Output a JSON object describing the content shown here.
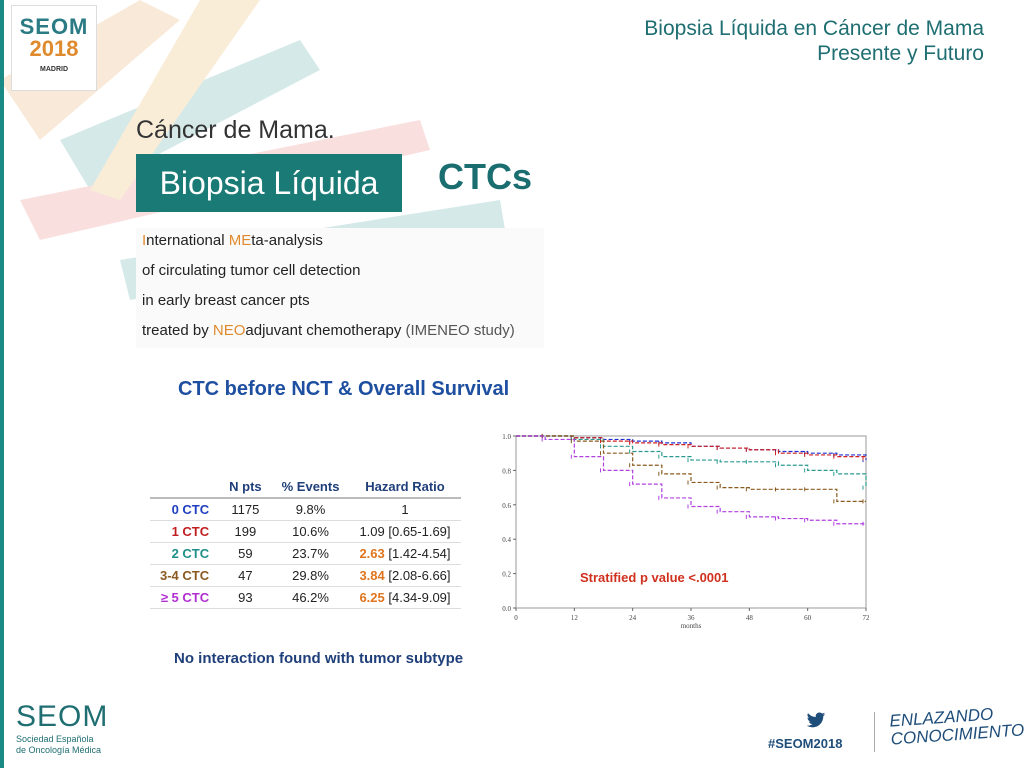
{
  "header": {
    "line1": "Biopsia Líquida en Cáncer de Mama",
    "line2": "Presente y Futuro"
  },
  "logo": {
    "line1": "SEOM",
    "line2": "2018",
    "line3": "MADRID"
  },
  "slide": {
    "subtitle": "Cáncer de Mama.",
    "box_label": "Biopsia Líquida",
    "ctcs": "CTCs"
  },
  "imeneo": {
    "l1a": "I",
    "l1b": "nternational ",
    "l1c": "ME",
    "l1d": "ta-analysis",
    "l2": "of circulating tumor cell detection",
    "l3": "in early breast cancer pts",
    "l4a": "treated by ",
    "l4b": "NEO",
    "l4c": "adjuvant chemotherapy",
    "l4d": " (IMENEO study)"
  },
  "panel": {
    "title": "CTC before NCT & Overall Survival",
    "table_headers": [
      "",
      "N pts",
      "% Events",
      "Hazard Ratio"
    ],
    "rows": [
      {
        "label": "0 CTC",
        "color": "#1f3fc0",
        "npts": "1175",
        "events": "9.8%",
        "hr_main": "1",
        "hr_ci": ""
      },
      {
        "label": "1 CTC",
        "color": "#c01f1f",
        "npts": "199",
        "events": "10.6%",
        "hr_main": "1.09",
        "hr_ci": " [0.65-1.69]"
      },
      {
        "label": "2 CTC",
        "color": "#1f8f8a",
        "npts": "59",
        "events": "23.7%",
        "hr_main": "2.63",
        "hr_ci": " [1.42-4.54]"
      },
      {
        "label": "3-4 CTC",
        "color": "#8a5a1f",
        "npts": "47",
        "events": "29.8%",
        "hr_main": "3.84",
        "hr_ci": " [2.08-6.66]"
      },
      {
        "label": "≥ 5 CTC",
        "color": "#b02fd0",
        "npts": "93",
        "events": "46.2%",
        "hr_main": "6.25",
        "hr_ci": " [4.34-9.09]"
      }
    ],
    "footnote": "No interaction found with tumor subtype",
    "pvalue": "Stratified p value <.0001"
  },
  "chart_data": {
    "type": "line",
    "xlabel": "months",
    "x_ticks": [
      0,
      12,
      24,
      36,
      48,
      60,
      72
    ],
    "y_ticks": [
      "0.0",
      "0.2",
      "0.4",
      "0.6",
      "0.8",
      "1.0"
    ],
    "xlim": [
      0,
      72
    ],
    "ylim": [
      0,
      1
    ],
    "series": [
      {
        "name": "0 CTC",
        "color": "#2030d0",
        "x": [
          0,
          6,
          12,
          18,
          24,
          30,
          36,
          42,
          48,
          54,
          60,
          66,
          72
        ],
        "y": [
          1.0,
          1.0,
          0.99,
          0.98,
          0.97,
          0.96,
          0.94,
          0.93,
          0.92,
          0.91,
          0.9,
          0.89,
          0.86
        ]
      },
      {
        "name": "1 CTC",
        "color": "#d02020",
        "x": [
          0,
          6,
          12,
          18,
          24,
          30,
          36,
          42,
          48,
          54,
          60,
          66,
          72
        ],
        "y": [
          1.0,
          1.0,
          0.99,
          0.97,
          0.96,
          0.95,
          0.94,
          0.93,
          0.92,
          0.9,
          0.89,
          0.88,
          0.87
        ]
      },
      {
        "name": "2 CTC",
        "color": "#2a9a90",
        "x": [
          0,
          6,
          12,
          18,
          24,
          30,
          36,
          42,
          48,
          54,
          60,
          66,
          72
        ],
        "y": [
          1.0,
          1.0,
          0.98,
          0.94,
          0.91,
          0.88,
          0.86,
          0.85,
          0.85,
          0.83,
          0.8,
          0.78,
          0.7
        ]
      },
      {
        "name": "3-4 CTC",
        "color": "#8a5a1f",
        "x": [
          0,
          6,
          12,
          18,
          24,
          30,
          36,
          42,
          48,
          54,
          60,
          66,
          72
        ],
        "y": [
          1.0,
          1.0,
          0.97,
          0.9,
          0.83,
          0.78,
          0.73,
          0.7,
          0.69,
          0.69,
          0.69,
          0.62,
          0.62
        ]
      },
      {
        "name": "≥ 5 CTC",
        "color": "#b040e0",
        "x": [
          0,
          6,
          12,
          18,
          24,
          30,
          36,
          42,
          48,
          54,
          60,
          66,
          72
        ],
        "y": [
          1.0,
          0.98,
          0.88,
          0.8,
          0.72,
          0.64,
          0.59,
          0.56,
          0.53,
          0.52,
          0.51,
          0.49,
          0.49
        ]
      }
    ]
  },
  "footer": {
    "seom": "SEOM",
    "sub1": "Sociedad  Española",
    "sub2": "de Oncología Médica",
    "hashtag": "#SEOM2018",
    "enlazando1": "ENLAZANDO",
    "enlazando2": "CONOCIMIENTO"
  }
}
